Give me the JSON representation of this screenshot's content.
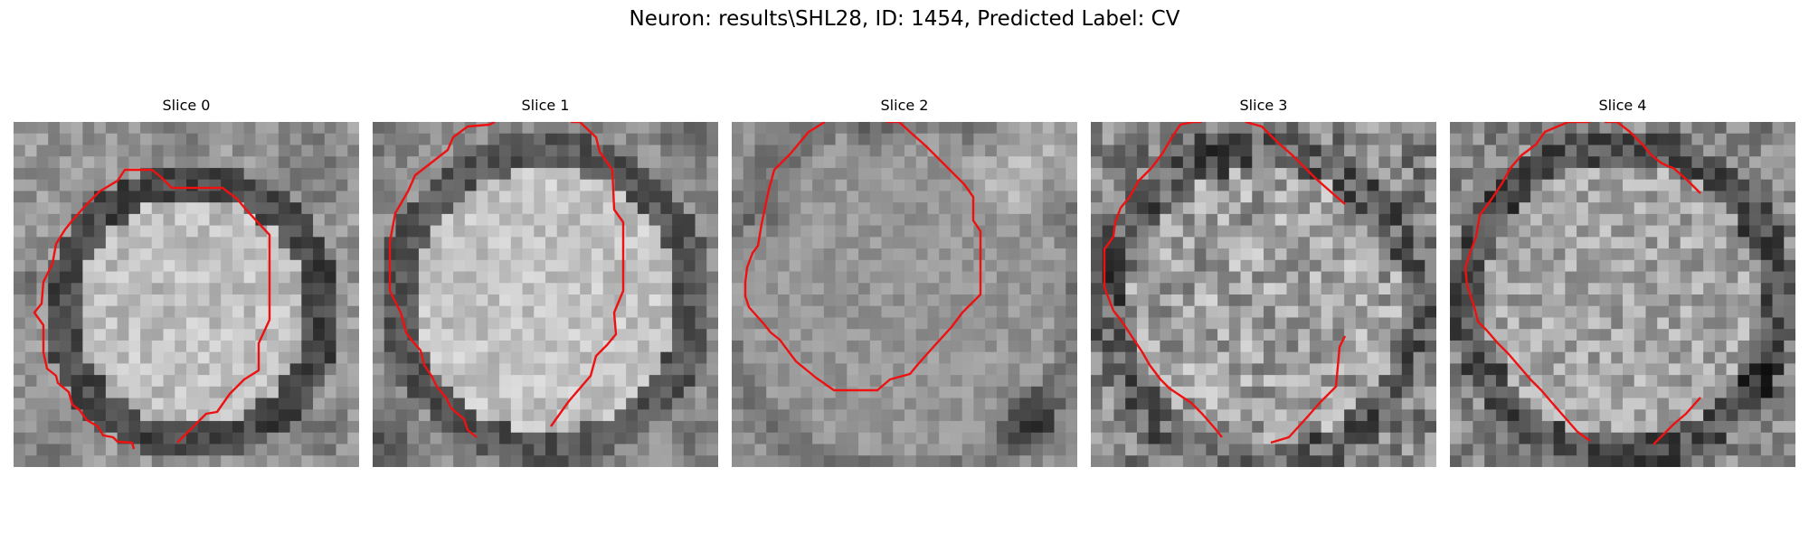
{
  "figure": {
    "title": "Neuron: results\\SHL28, ID: 1454, Predicted Label: CV",
    "contour_color": "#ee1111"
  },
  "slices": [
    {
      "title": "Slice 0"
    },
    {
      "title": "Slice 1"
    },
    {
      "title": "Slice 2"
    },
    {
      "title": "Slice 3"
    },
    {
      "title": "Slice 4"
    }
  ]
}
